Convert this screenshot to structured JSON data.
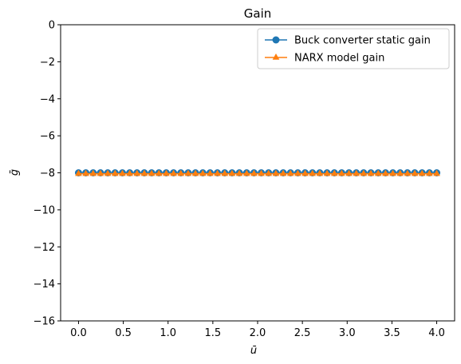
{
  "chart_data": {
    "type": "line",
    "title": "Gain",
    "xlabel": "ū",
    "ylabel": "ḡ",
    "xlim": [
      -0.2,
      4.2
    ],
    "ylim": [
      -16,
      0
    ],
    "xticks": [
      0.0,
      0.5,
      1.0,
      1.5,
      2.0,
      2.5,
      3.0,
      3.5,
      4.0
    ],
    "xtick_labels": [
      "0.0",
      "0.5",
      "1.0",
      "1.5",
      "2.0",
      "2.5",
      "3.0",
      "3.5",
      "4.0"
    ],
    "yticks": [
      0,
      -2,
      -4,
      -6,
      -8,
      -10,
      -12,
      -14,
      -16
    ],
    "ytick_labels": [
      "0",
      "−2",
      "−4",
      "−6",
      "−8",
      "−10",
      "−12",
      "−14",
      "−16"
    ],
    "grid": false,
    "legend_position": "top-right",
    "x": [
      0.0,
      0.0816,
      0.1633,
      0.2449,
      0.3265,
      0.4082,
      0.4898,
      0.5714,
      0.6531,
      0.7347,
      0.8163,
      0.898,
      0.9796,
      1.0612,
      1.1429,
      1.2245,
      1.3061,
      1.3878,
      1.4694,
      1.551,
      1.6327,
      1.7143,
      1.7959,
      1.8776,
      1.9592,
      2.0408,
      2.1224,
      2.2041,
      2.2857,
      2.3673,
      2.449,
      2.5306,
      2.6122,
      2.6939,
      2.7755,
      2.8571,
      2.9388,
      3.0204,
      3.102,
      3.1837,
      3.2653,
      3.3469,
      3.4286,
      3.5102,
      3.5918,
      3.6735,
      3.7551,
      3.8367,
      3.9184,
      4.0
    ],
    "series": [
      {
        "name": "Buck converter static gain",
        "color": "#1f77b4",
        "marker": "circle",
        "values": [
          -8.0,
          -8.0,
          -8.0,
          -8.0,
          -8.0,
          -8.0,
          -8.0,
          -8.0,
          -8.0,
          -8.0,
          -8.0,
          -8.0,
          -8.0,
          -8.0,
          -8.0,
          -8.0,
          -8.0,
          -8.0,
          -8.0,
          -8.0,
          -8.0,
          -8.0,
          -8.0,
          -8.0,
          -8.0,
          -8.0,
          -8.0,
          -8.0,
          -8.0,
          -8.0,
          -8.0,
          -8.0,
          -8.0,
          -8.0,
          -8.0,
          -8.0,
          -8.0,
          -8.0,
          -8.0,
          -8.0,
          -8.0,
          -8.0,
          -8.0,
          -8.0,
          -8.0,
          -8.0,
          -8.0,
          -8.0,
          -8.0,
          -8.0
        ]
      },
      {
        "name": "NARX model gain",
        "color": "#ff7f0e",
        "marker": "triangle",
        "values": [
          -8.05,
          -8.05,
          -8.05,
          -8.05,
          -8.05,
          -8.05,
          -8.05,
          -8.05,
          -8.05,
          -8.05,
          -8.05,
          -8.05,
          -8.05,
          -8.05,
          -8.05,
          -8.05,
          -8.05,
          -8.05,
          -8.05,
          -8.05,
          -8.05,
          -8.05,
          -8.05,
          -8.05,
          -8.05,
          -8.05,
          -8.05,
          -8.05,
          -8.05,
          -8.05,
          -8.05,
          -8.05,
          -8.05,
          -8.05,
          -8.05,
          -8.05,
          -8.05,
          -8.05,
          -8.05,
          -8.05,
          -8.05,
          -8.05,
          -8.05,
          -8.05,
          -8.05,
          -8.05,
          -8.05,
          -8.05,
          -8.05,
          -8.05
        ]
      }
    ]
  }
}
